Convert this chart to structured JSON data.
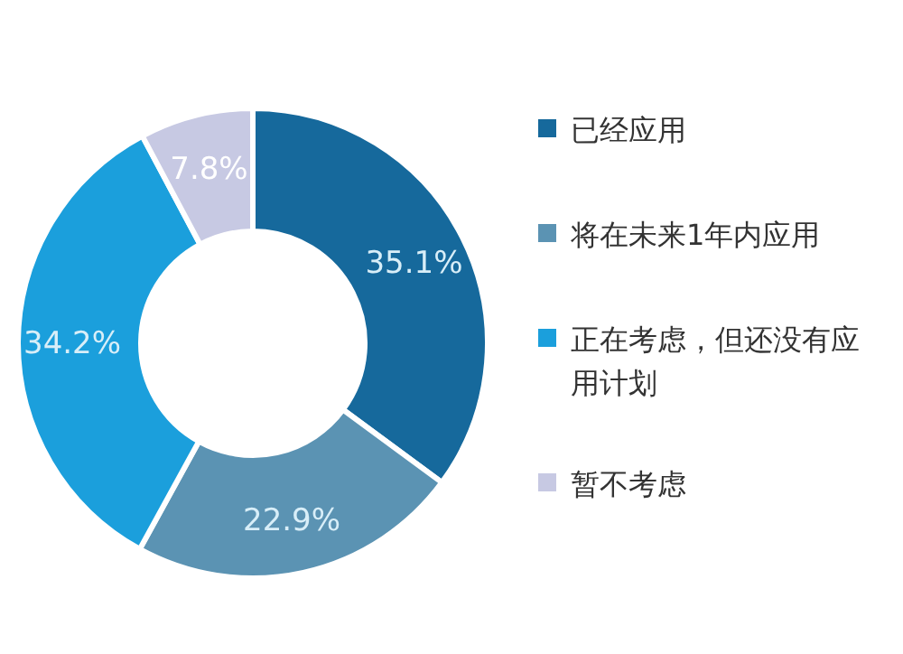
{
  "chart_data": {
    "type": "donut",
    "categories": [
      "已经应用",
      "将在未来1年内应用",
      "正在考虑，但还没有应用计划",
      "暂不考虑"
    ],
    "values": [
      35.1,
      22.9,
      34.2,
      7.8
    ],
    "colors": [
      "#16699c",
      "#5b93b3",
      "#1b9fdc",
      "#c7c9e3"
    ],
    "value_labels": [
      "35.1%",
      "22.9%",
      "34.2%",
      "7.8%"
    ],
    "legend": "right"
  }
}
